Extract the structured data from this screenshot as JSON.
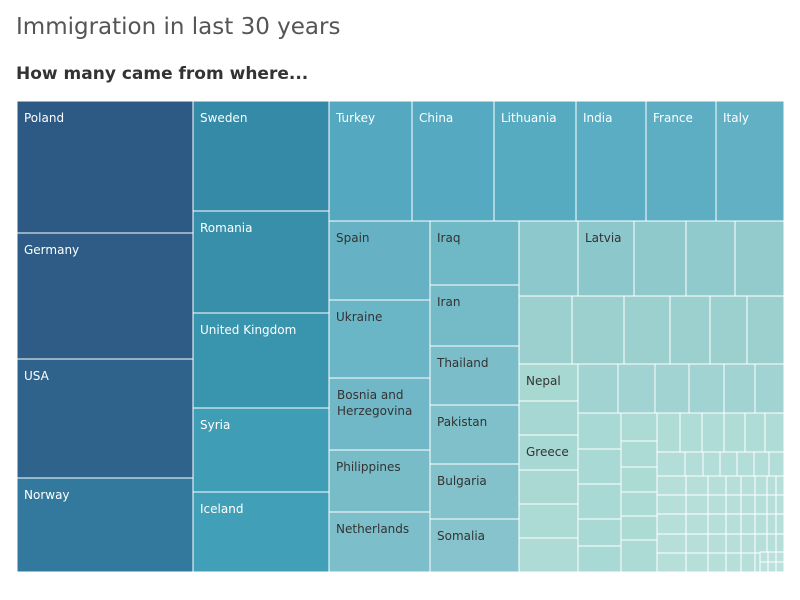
{
  "title": "Immigration in last 30 years",
  "subtitle": "How many came from where...",
  "chart_data": {
    "type": "treemap",
    "labeled": [
      {
        "name": "Poland",
        "color": "#2d5985"
      },
      {
        "name": "Germany",
        "color": "#2e5c86"
      },
      {
        "name": "USA",
        "color": "#2f638c"
      },
      {
        "name": "Norway",
        "color": "#33799e"
      },
      {
        "name": "Sweden",
        "color": "#358aa7"
      },
      {
        "name": "Romania",
        "color": "#378fa9"
      },
      {
        "name": "United Kingdom",
        "color": "#3994ae"
      },
      {
        "name": "Syria",
        "color": "#3f9db5"
      },
      {
        "name": "Iceland",
        "color": "#41a0b7"
      },
      {
        "name": "Turkey",
        "color": "#54a9c1"
      },
      {
        "name": "China",
        "color": "#55aac1"
      },
      {
        "name": "Lithuania",
        "color": "#57abc1"
      },
      {
        "name": "India",
        "color": "#5aadc2"
      },
      {
        "name": "France",
        "color": "#5eaec3"
      },
      {
        "name": "Italy",
        "color": "#62b0c3"
      },
      {
        "name": "Spain",
        "color": "#66b2c4"
      },
      {
        "name": "Ukraine",
        "color": "#6ab5c6"
      },
      {
        "name": "Bosnia and Herzegovina",
        "color": "#70b8c7"
      },
      {
        "name": "Philippines",
        "color": "#78bcc8"
      },
      {
        "name": "Netherlands",
        "color": "#7cbeca"
      },
      {
        "name": "Iraq",
        "color": "#6fb8c6"
      },
      {
        "name": "Iran",
        "color": "#74bac7"
      },
      {
        "name": "Thailand",
        "color": "#7bbec9"
      },
      {
        "name": "Pakistan",
        "color": "#7fc0ca"
      },
      {
        "name": "Bulgaria",
        "color": "#83c2cb"
      },
      {
        "name": "Somalia",
        "color": "#86c3cc"
      },
      {
        "name": "Latvia",
        "color": "#8cc7cb"
      },
      {
        "name": "Nepal",
        "color": "#a7d8d2"
      },
      {
        "name": "Greece",
        "color": "#a8d8d3"
      }
    ]
  }
}
